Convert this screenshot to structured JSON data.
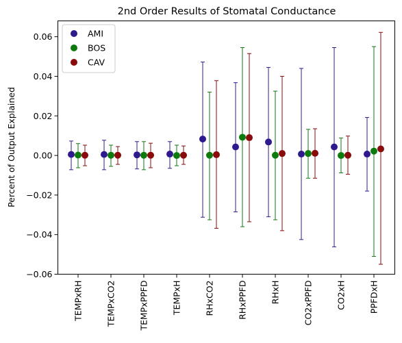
{
  "chart_data": {
    "type": "scatter",
    "title": "2nd Order Results of Stomatal Conductance",
    "xlabel": "",
    "ylabel": "Percent of Output Explained",
    "ylim": [
      -0.06,
      0.068
    ],
    "yticks": [
      -0.06,
      -0.04,
      -0.02,
      0.0,
      0.02,
      0.04,
      0.06
    ],
    "ytick_labels": [
      "−0.06",
      "−0.04",
      "−0.02",
      "0.00",
      "0.02",
      "0.04",
      "0.06"
    ],
    "categories": [
      "TEMPxRH",
      "TEMPxCO2",
      "TEMPxPPFD",
      "TEMPxH",
      "RHxCO2",
      "RHxPPFD",
      "RHxH",
      "CO2xPPFD",
      "CO2xH",
      "PPFDxH"
    ],
    "grid": false,
    "legend_position": "top-left",
    "series": [
      {
        "name": "AMI",
        "color": "#2e1a8c",
        "values": [
          0.0005,
          0.0005,
          0.0003,
          0.0007,
          0.0083,
          0.0043,
          0.0068,
          0.0007,
          0.0043,
          0.0007
        ],
        "lower": [
          -0.0072,
          -0.0072,
          -0.0068,
          -0.0065,
          -0.0312,
          -0.0285,
          -0.031,
          -0.0425,
          -0.0462,
          -0.018
        ],
        "upper": [
          0.0073,
          0.0077,
          0.007,
          0.007,
          0.0472,
          0.0368,
          0.0445,
          0.044,
          0.0545,
          0.0192
        ]
      },
      {
        "name": "BOS",
        "color": "#0d7a0d",
        "values": [
          0.0002,
          0.0001,
          0.0001,
          0.0,
          0.0001,
          0.0092,
          0.0001,
          0.001,
          0.0,
          0.0022
        ],
        "lower": [
          -0.0062,
          -0.0055,
          -0.0072,
          -0.0052,
          -0.0325,
          -0.036,
          -0.0325,
          -0.0115,
          -0.0088,
          -0.051
        ],
        "upper": [
          0.006,
          0.0052,
          0.007,
          0.0052,
          0.032,
          0.0545,
          0.0325,
          0.0132,
          0.0088,
          0.055
        ]
      },
      {
        "name": "CAV",
        "color": "#8a0b0b",
        "values": [
          0.0001,
          0.0001,
          0.0001,
          0.0001,
          0.0004,
          0.009,
          0.001,
          0.0011,
          0.0001,
          0.0033
        ],
        "lower": [
          -0.0052,
          -0.0045,
          -0.0062,
          -0.0045,
          -0.0368,
          -0.0335,
          -0.038,
          -0.0115,
          -0.0095,
          -0.055
        ],
        "upper": [
          0.0052,
          0.0045,
          0.0062,
          0.0048,
          0.0378,
          0.0515,
          0.04,
          0.0135,
          0.0098,
          0.0622
        ]
      }
    ]
  }
}
